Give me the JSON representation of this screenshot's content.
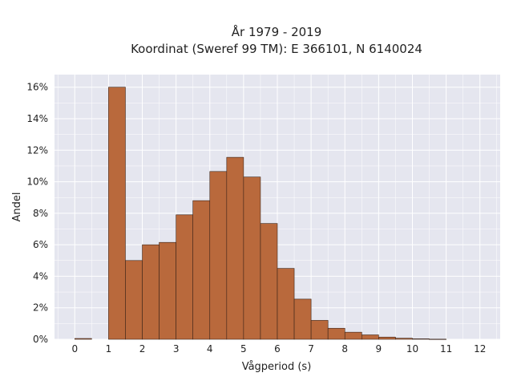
{
  "chart_data": {
    "type": "bar",
    "title_line1": "År 1979 - 2019",
    "title_line2": "Koordinat (Sweref 99 TM): E 366101, N 6140024",
    "xlabel": "Vågperiod (s)",
    "ylabel": "Andel",
    "xlim": [
      -0.6,
      12.6
    ],
    "ylim": [
      0,
      16.8
    ],
    "grid": true,
    "x_ticks": [
      0,
      1,
      2,
      3,
      4,
      5,
      6,
      7,
      8,
      9,
      10,
      11,
      12
    ],
    "x_tick_labels": [
      "0",
      "1",
      "2",
      "3",
      "4",
      "5",
      "6",
      "7",
      "8",
      "9",
      "10",
      "11",
      "12"
    ],
    "y_ticks": [
      0,
      2,
      4,
      6,
      8,
      10,
      12,
      14,
      16
    ],
    "y_tick_labels": [
      "0%",
      "2%",
      "4%",
      "6%",
      "8%",
      "10%",
      "12%",
      "14%",
      "16%"
    ],
    "bin_width": 0.5,
    "bins": [
      {
        "x0": 0.0,
        "value": 0.05
      },
      {
        "x0": 1.0,
        "value": 16.0
      },
      {
        "x0": 1.5,
        "value": 5.0
      },
      {
        "x0": 2.0,
        "value": 6.0
      },
      {
        "x0": 2.5,
        "value": 6.15
      },
      {
        "x0": 3.0,
        "value": 7.9
      },
      {
        "x0": 3.5,
        "value": 8.8
      },
      {
        "x0": 4.0,
        "value": 10.65
      },
      {
        "x0": 4.5,
        "value": 11.55
      },
      {
        "x0": 5.0,
        "value": 10.3
      },
      {
        "x0": 5.5,
        "value": 7.35
      },
      {
        "x0": 6.0,
        "value": 4.5
      },
      {
        "x0": 6.5,
        "value": 2.55
      },
      {
        "x0": 7.0,
        "value": 1.2
      },
      {
        "x0": 7.5,
        "value": 0.7
      },
      {
        "x0": 8.0,
        "value": 0.45
      },
      {
        "x0": 8.5,
        "value": 0.28
      },
      {
        "x0": 9.0,
        "value": 0.14
      },
      {
        "x0": 9.5,
        "value": 0.07
      },
      {
        "x0": 10.0,
        "value": 0.03
      },
      {
        "x0": 10.5,
        "value": 0.01
      }
    ],
    "colors": {
      "bar_fill": "#b9693c",
      "bar_stroke": "#3b2418",
      "plot_background": "#e5e6ef",
      "grid": "#ffffff"
    }
  }
}
